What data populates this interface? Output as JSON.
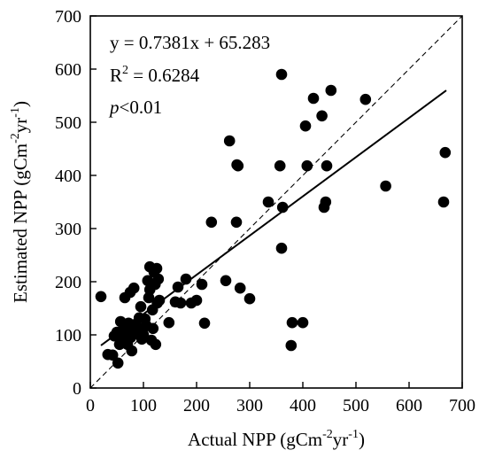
{
  "chart_data": {
    "type": "scatter",
    "x_label": {
      "main": "Actual NPP (gCm",
      "sup1": "-2",
      "mid": "yr",
      "sup2": "-1",
      "end": ")"
    },
    "y_label": {
      "main": "Estimated NPP (gCm",
      "sup1": "-2",
      "mid": "yr",
      "sup2": "-1",
      "end": ")"
    },
    "xlim": [
      0,
      700
    ],
    "ylim": [
      0,
      700
    ],
    "xticks": [
      0,
      100,
      200,
      300,
      400,
      500,
      600,
      700
    ],
    "yticks": [
      0,
      100,
      200,
      300,
      400,
      500,
      600,
      700
    ],
    "xtick_labels": [
      "0",
      "100",
      "200",
      "300",
      "400",
      "500",
      "600",
      "700"
    ],
    "ytick_labels": [
      "0",
      "100",
      "200",
      "300",
      "400",
      "500",
      "600",
      "700"
    ],
    "grid": false,
    "annotations": {
      "equation": "y = 0.7381x + 65.283",
      "r2_prefix": "R",
      "r2_sup": "2",
      "r2_value": " = 0.6284",
      "p_italic": "p",
      "p_rest": "<0.01"
    },
    "regression": {
      "slope": 0.7381,
      "intercept": 65.283,
      "x_range": [
        20,
        670
      ],
      "style": "solid"
    },
    "reference_line": {
      "style": "dashed",
      "from": [
        0,
        0
      ],
      "to": [
        700,
        700
      ]
    },
    "points": [
      {
        "x": 20,
        "y": 172
      },
      {
        "x": 33,
        "y": 63
      },
      {
        "x": 42,
        "y": 62
      },
      {
        "x": 45,
        "y": 98
      },
      {
        "x": 50,
        "y": 105
      },
      {
        "x": 52,
        "y": 47
      },
      {
        "x": 55,
        "y": 82
      },
      {
        "x": 57,
        "y": 125
      },
      {
        "x": 60,
        "y": 105
      },
      {
        "x": 62,
        "y": 90
      },
      {
        "x": 63,
        "y": 118
      },
      {
        "x": 65,
        "y": 170
      },
      {
        "x": 68,
        "y": 98
      },
      {
        "x": 70,
        "y": 82
      },
      {
        "x": 72,
        "y": 122
      },
      {
        "x": 73,
        "y": 110
      },
      {
        "x": 75,
        "y": 180
      },
      {
        "x": 76,
        "y": 95
      },
      {
        "x": 78,
        "y": 70
      },
      {
        "x": 80,
        "y": 100
      },
      {
        "x": 82,
        "y": 188
      },
      {
        "x": 85,
        "y": 120
      },
      {
        "x": 88,
        "y": 112
      },
      {
        "x": 90,
        "y": 105
      },
      {
        "x": 92,
        "y": 132
      },
      {
        "x": 95,
        "y": 153
      },
      {
        "x": 97,
        "y": 92
      },
      {
        "x": 100,
        "y": 100
      },
      {
        "x": 103,
        "y": 130
      },
      {
        "x": 105,
        "y": 118
      },
      {
        "x": 108,
        "y": 202
      },
      {
        "x": 110,
        "y": 170
      },
      {
        "x": 112,
        "y": 228
      },
      {
        "x": 112,
        "y": 185
      },
      {
        "x": 115,
        "y": 90
      },
      {
        "x": 117,
        "y": 147
      },
      {
        "x": 118,
        "y": 112
      },
      {
        "x": 120,
        "y": 218
      },
      {
        "x": 122,
        "y": 195
      },
      {
        "x": 123,
        "y": 82
      },
      {
        "x": 125,
        "y": 225
      },
      {
        "x": 126,
        "y": 160
      },
      {
        "x": 128,
        "y": 205
      },
      {
        "x": 130,
        "y": 165
      },
      {
        "x": 148,
        "y": 123
      },
      {
        "x": 160,
        "y": 162
      },
      {
        "x": 165,
        "y": 190
      },
      {
        "x": 170,
        "y": 160
      },
      {
        "x": 180,
        "y": 205
      },
      {
        "x": 190,
        "y": 160
      },
      {
        "x": 200,
        "y": 165
      },
      {
        "x": 210,
        "y": 195
      },
      {
        "x": 215,
        "y": 122
      },
      {
        "x": 228,
        "y": 312
      },
      {
        "x": 255,
        "y": 202
      },
      {
        "x": 262,
        "y": 465
      },
      {
        "x": 275,
        "y": 312
      },
      {
        "x": 276,
        "y": 420
      },
      {
        "x": 278,
        "y": 418
      },
      {
        "x": 282,
        "y": 188
      },
      {
        "x": 300,
        "y": 168
      },
      {
        "x": 335,
        "y": 350
      },
      {
        "x": 357,
        "y": 418
      },
      {
        "x": 360,
        "y": 590
      },
      {
        "x": 360,
        "y": 263
      },
      {
        "x": 362,
        "y": 340
      },
      {
        "x": 378,
        "y": 80
      },
      {
        "x": 380,
        "y": 123
      },
      {
        "x": 400,
        "y": 123
      },
      {
        "x": 405,
        "y": 493
      },
      {
        "x": 408,
        "y": 418
      },
      {
        "x": 420,
        "y": 545
      },
      {
        "x": 436,
        "y": 512
      },
      {
        "x": 440,
        "y": 340
      },
      {
        "x": 443,
        "y": 350
      },
      {
        "x": 445,
        "y": 418
      },
      {
        "x": 453,
        "y": 560
      },
      {
        "x": 518,
        "y": 543
      },
      {
        "x": 556,
        "y": 380
      },
      {
        "x": 665,
        "y": 350
      },
      {
        "x": 668,
        "y": 443
      }
    ]
  }
}
